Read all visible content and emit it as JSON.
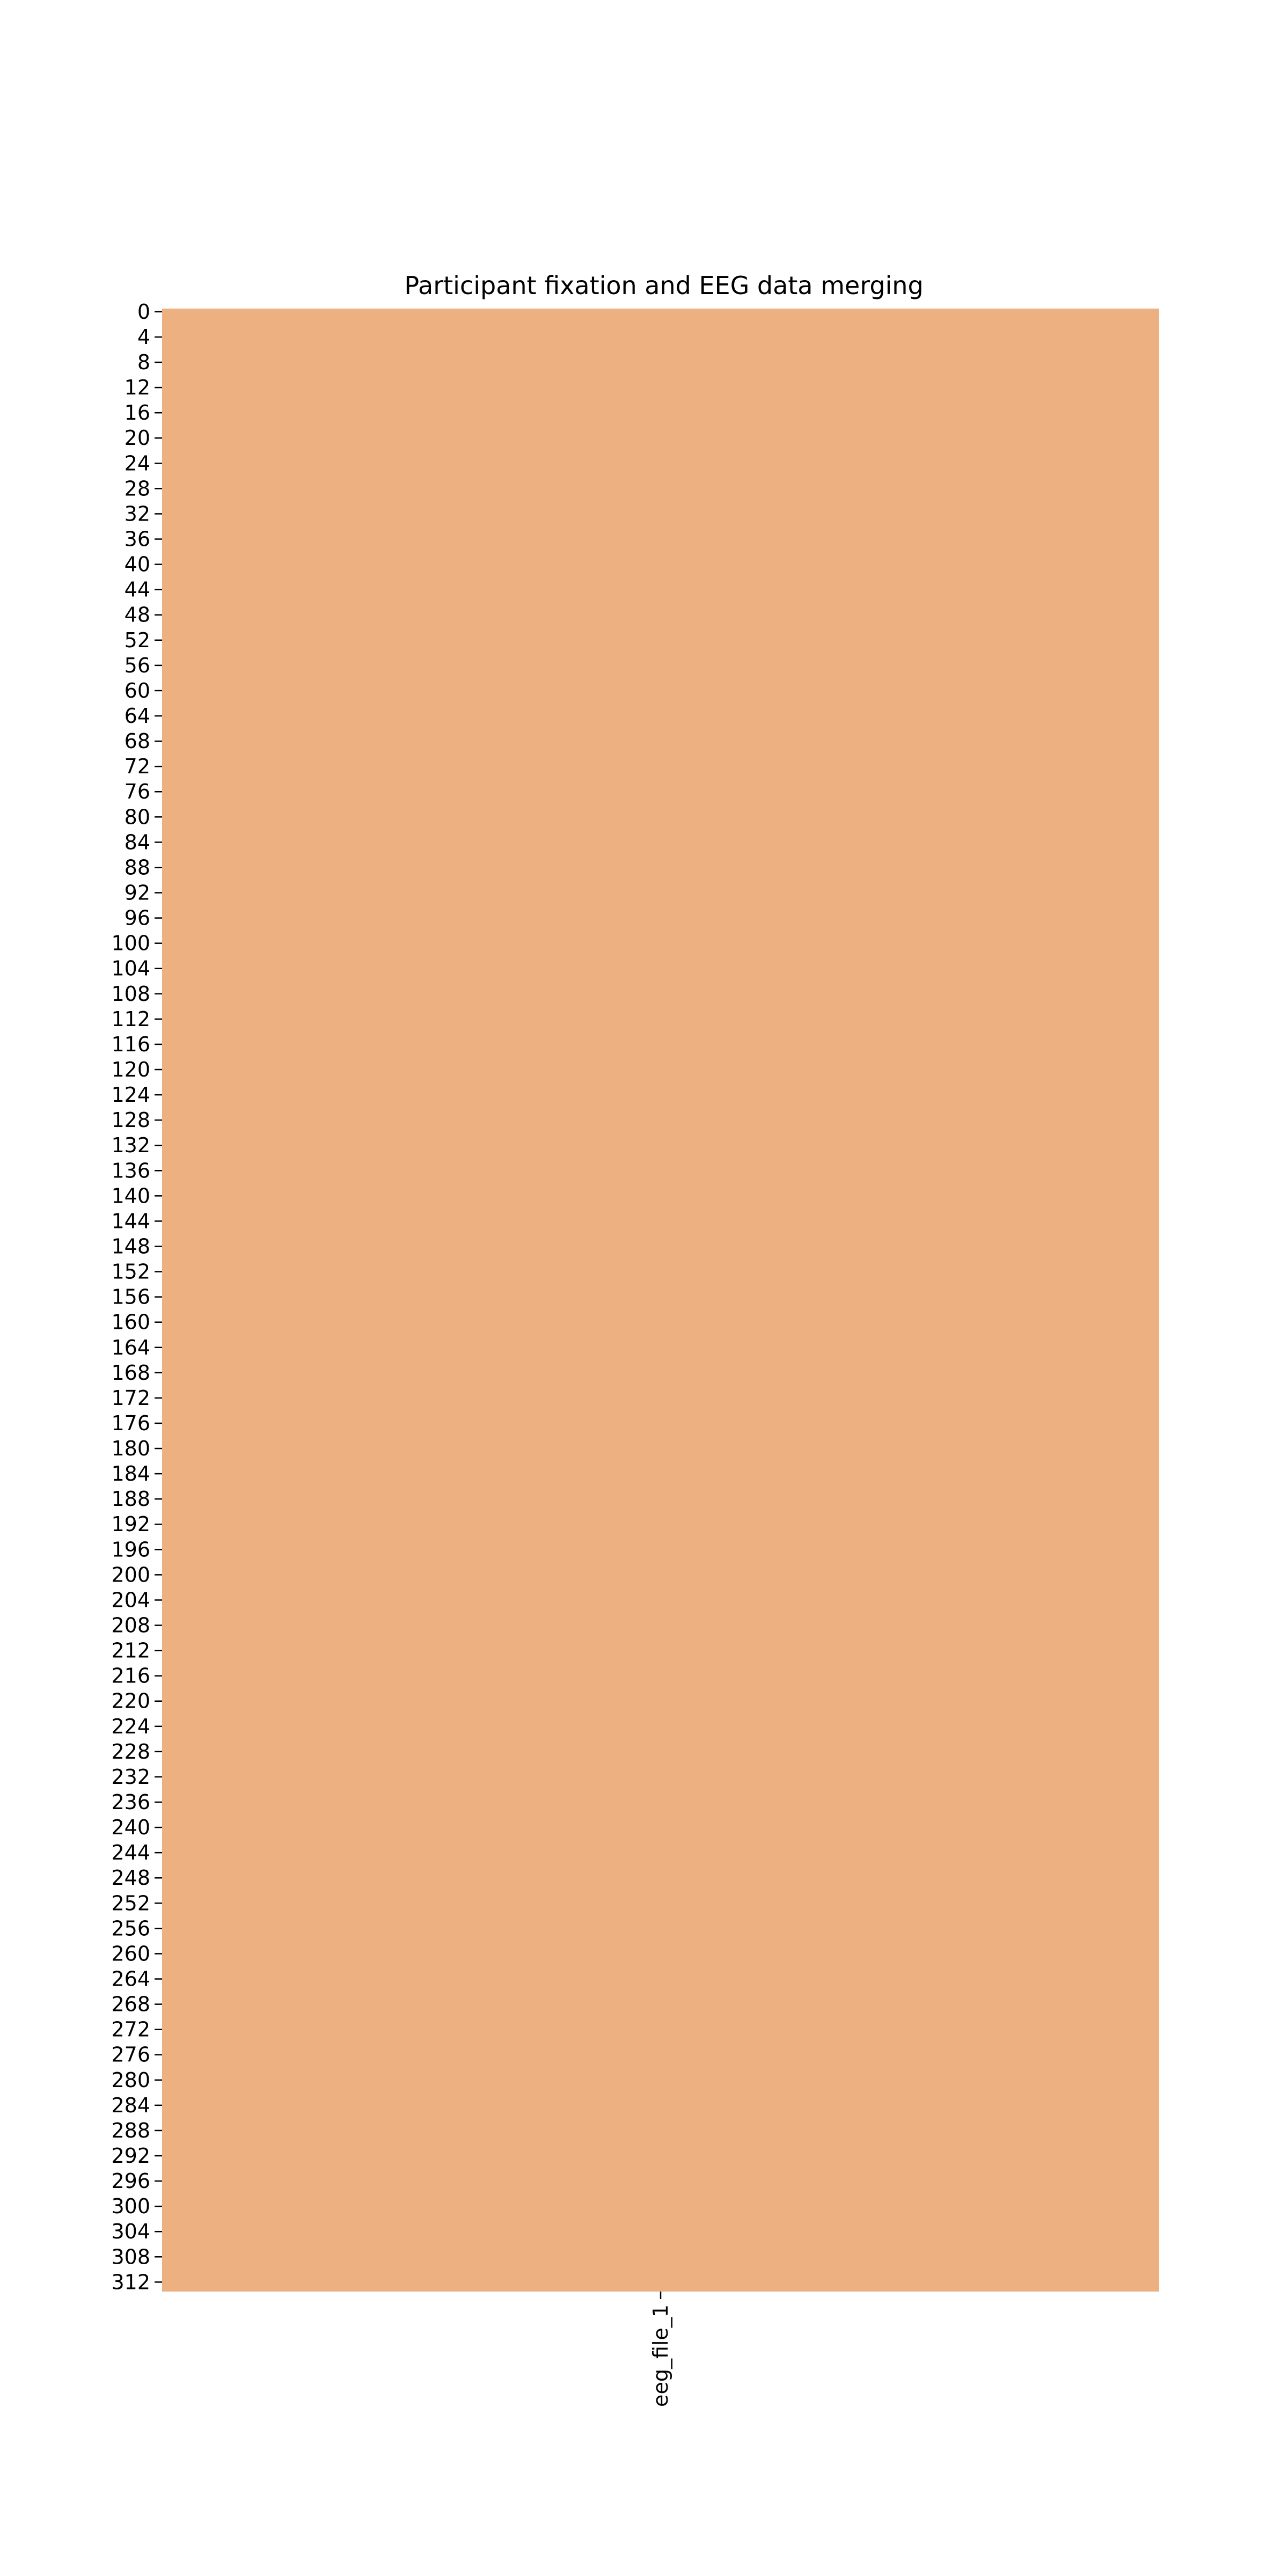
{
  "chart_data": {
    "type": "heatmap",
    "title": "Participant fixation and EEG data merging",
    "xlabel": "",
    "ylabel": "",
    "x_categories": [
      "eeg_file_1"
    ],
    "y_range": [
      0,
      314
    ],
    "y_tick_labels": [
      "0",
      "4",
      "8",
      "12",
      "16",
      "20",
      "24",
      "28",
      "32",
      "36",
      "40",
      "44",
      "48",
      "52",
      "56",
      "60",
      "64",
      "68",
      "72",
      "76",
      "80",
      "84",
      "88",
      "92",
      "96",
      "100",
      "104",
      "108",
      "112",
      "116",
      "120",
      "124",
      "128",
      "132",
      "136",
      "140",
      "144",
      "148",
      "152",
      "156",
      "160",
      "164",
      "168",
      "172",
      "176",
      "180",
      "184",
      "188",
      "192",
      "196",
      "200",
      "204",
      "208",
      "212",
      "216",
      "220",
      "224",
      "228",
      "232",
      "236",
      "240",
      "244",
      "248",
      "252",
      "256",
      "260",
      "264",
      "268",
      "272",
      "276",
      "280",
      "284",
      "288",
      "292",
      "296",
      "300",
      "304",
      "308",
      "312"
    ],
    "cells": [
      {
        "column": "eeg_file_1",
        "rows": [
          0,
          313
        ],
        "color": "#ecb081"
      }
    ],
    "colorbar": false,
    "grid": false,
    "legend": "none"
  }
}
